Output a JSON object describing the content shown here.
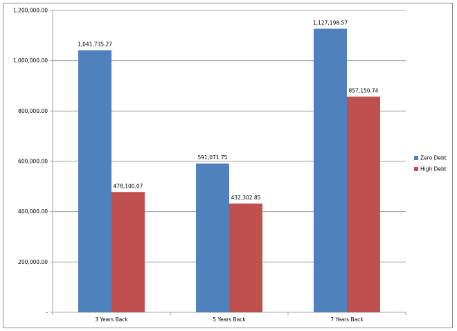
{
  "chart_data": {
    "type": "bar",
    "categories": [
      "3 Years Back",
      "5 Years Back",
      "7 Years Back"
    ],
    "series": [
      {
        "name": "Zero Debt",
        "color": "#4F81BD",
        "values": [
          1041735.27,
          591071.75,
          1127198.57
        ],
        "labels": [
          "1,041,735.27",
          "591,071.75",
          "1,127,198.57"
        ]
      },
      {
        "name": "High Debt",
        "color": "#C0504D",
        "values": [
          478100.07,
          432302.85,
          857150.74
        ],
        "labels": [
          "478,100.07",
          "432,302.85",
          "857,150.74"
        ]
      }
    ],
    "ylim": [
      0,
      1200000
    ],
    "yticks": [
      0,
      200000,
      400000,
      600000,
      800000,
      1000000,
      1200000
    ],
    "ytick_labels": [
      "-",
      "200,000.00",
      "400,000.00",
      "600,000.00",
      "800,000.00",
      "1,000,000.00",
      "1,200,000.00"
    ],
    "grid": true,
    "legend_position": "right"
  }
}
